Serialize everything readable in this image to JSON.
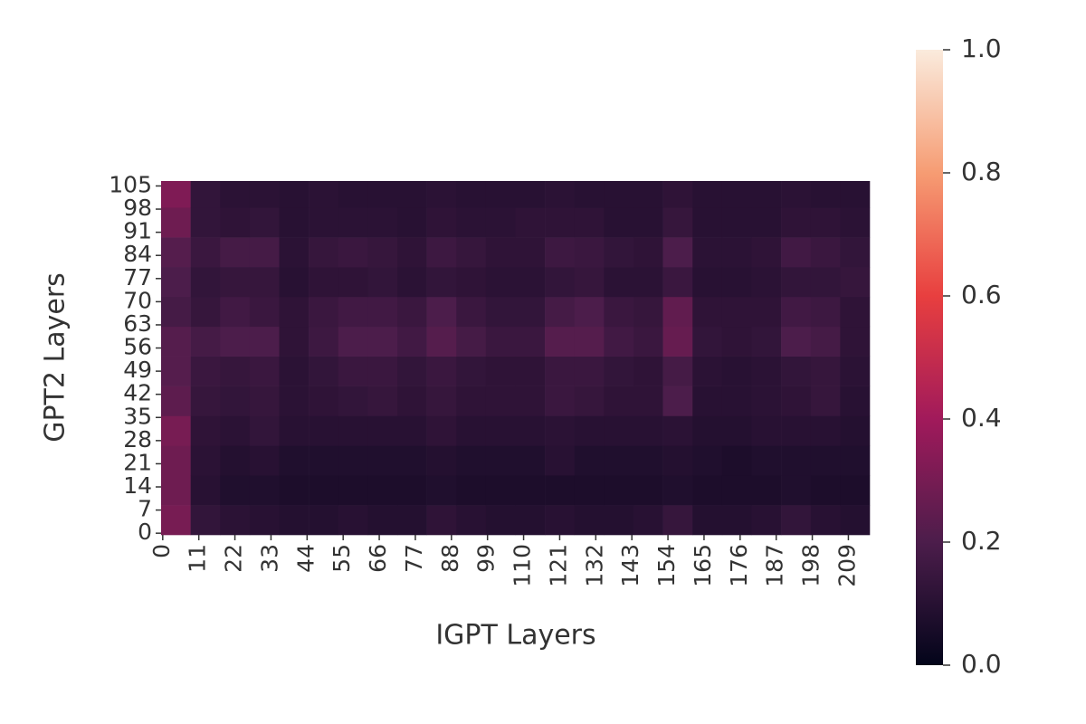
{
  "chart_data": {
    "type": "heatmap",
    "xlabel": "IGPT Layers",
    "ylabel": "GPT2 Layers",
    "xbins": [
      0,
      9,
      18,
      27,
      36,
      45,
      54,
      63,
      72,
      81,
      90,
      99,
      108,
      117,
      126,
      135,
      144,
      153,
      162,
      171,
      180,
      189,
      198,
      207,
      216
    ],
    "ybins": [
      0,
      9,
      18,
      27,
      36,
      45,
      54,
      63,
      72,
      81,
      90,
      99,
      107
    ],
    "xlim": [
      0,
      216
    ],
    "ylim": [
      0,
      107
    ],
    "xticks": [
      0,
      11,
      22,
      33,
      44,
      55,
      66,
      77,
      88,
      99,
      110,
      121,
      132,
      143,
      154,
      165,
      176,
      187,
      198,
      209
    ],
    "yticks": [
      0,
      7,
      14,
      21,
      28,
      35,
      42,
      49,
      56,
      63,
      70,
      77,
      84,
      91,
      98,
      105
    ],
    "z": [
      [
        0.3,
        0.13,
        0.11,
        0.1,
        0.09,
        0.09,
        0.1,
        0.09,
        0.09,
        0.12,
        0.1,
        0.09,
        0.09,
        0.1,
        0.09,
        0.09,
        0.1,
        0.14,
        0.09,
        0.09,
        0.1,
        0.13,
        0.1,
        0.09
      ],
      [
        0.28,
        0.1,
        0.08,
        0.08,
        0.07,
        0.07,
        0.07,
        0.07,
        0.07,
        0.08,
        0.07,
        0.07,
        0.07,
        0.07,
        0.07,
        0.07,
        0.07,
        0.08,
        0.07,
        0.07,
        0.07,
        0.08,
        0.07,
        0.07
      ],
      [
        0.28,
        0.11,
        0.09,
        0.1,
        0.08,
        0.08,
        0.08,
        0.08,
        0.08,
        0.09,
        0.08,
        0.08,
        0.08,
        0.1,
        0.08,
        0.08,
        0.08,
        0.09,
        0.08,
        0.07,
        0.08,
        0.08,
        0.08,
        0.08
      ],
      [
        0.3,
        0.12,
        0.11,
        0.13,
        0.1,
        0.1,
        0.1,
        0.1,
        0.1,
        0.12,
        0.1,
        0.1,
        0.1,
        0.11,
        0.1,
        0.1,
        0.1,
        0.11,
        0.09,
        0.09,
        0.1,
        0.1,
        0.1,
        0.09
      ],
      [
        0.24,
        0.14,
        0.13,
        0.14,
        0.11,
        0.12,
        0.13,
        0.14,
        0.12,
        0.14,
        0.12,
        0.12,
        0.12,
        0.15,
        0.14,
        0.12,
        0.12,
        0.2,
        0.1,
        0.1,
        0.11,
        0.12,
        0.14,
        0.1
      ],
      [
        0.22,
        0.15,
        0.14,
        0.15,
        0.11,
        0.13,
        0.15,
        0.15,
        0.13,
        0.15,
        0.13,
        0.12,
        0.12,
        0.15,
        0.15,
        0.13,
        0.12,
        0.18,
        0.11,
        0.1,
        0.11,
        0.13,
        0.14,
        0.11
      ],
      [
        0.22,
        0.18,
        0.2,
        0.2,
        0.12,
        0.16,
        0.2,
        0.2,
        0.17,
        0.22,
        0.18,
        0.15,
        0.15,
        0.22,
        0.22,
        0.17,
        0.15,
        0.26,
        0.13,
        0.12,
        0.13,
        0.2,
        0.18,
        0.12
      ],
      [
        0.18,
        0.14,
        0.17,
        0.15,
        0.12,
        0.15,
        0.17,
        0.17,
        0.15,
        0.2,
        0.15,
        0.13,
        0.13,
        0.18,
        0.2,
        0.15,
        0.14,
        0.25,
        0.12,
        0.12,
        0.12,
        0.17,
        0.16,
        0.12
      ],
      [
        0.2,
        0.13,
        0.14,
        0.14,
        0.1,
        0.12,
        0.12,
        0.13,
        0.11,
        0.13,
        0.12,
        0.11,
        0.11,
        0.13,
        0.14,
        0.11,
        0.11,
        0.15,
        0.1,
        0.1,
        0.11,
        0.13,
        0.13,
        0.14
      ],
      [
        0.22,
        0.15,
        0.18,
        0.18,
        0.11,
        0.14,
        0.15,
        0.14,
        0.12,
        0.16,
        0.14,
        0.12,
        0.12,
        0.16,
        0.15,
        0.13,
        0.12,
        0.2,
        0.11,
        0.11,
        0.12,
        0.17,
        0.15,
        0.13
      ],
      [
        0.28,
        0.13,
        0.12,
        0.13,
        0.1,
        0.11,
        0.11,
        0.11,
        0.1,
        0.12,
        0.11,
        0.11,
        0.12,
        0.12,
        0.12,
        0.1,
        0.1,
        0.14,
        0.1,
        0.1,
        0.1,
        0.12,
        0.12,
        0.11
      ],
      [
        0.32,
        0.13,
        0.11,
        0.11,
        0.1,
        0.11,
        0.1,
        0.1,
        0.1,
        0.11,
        0.1,
        0.1,
        0.1,
        0.11,
        0.1,
        0.1,
        0.1,
        0.12,
        0.1,
        0.1,
        0.1,
        0.11,
        0.1,
        0.1
      ]
    ],
    "zlim": [
      0,
      1
    ],
    "zticks": [
      {
        "value": 0,
        "label": "0.0"
      },
      0.2,
      0.4,
      0.6,
      0.8,
      {
        "value": 1,
        "label": "1.0"
      }
    ]
  }
}
